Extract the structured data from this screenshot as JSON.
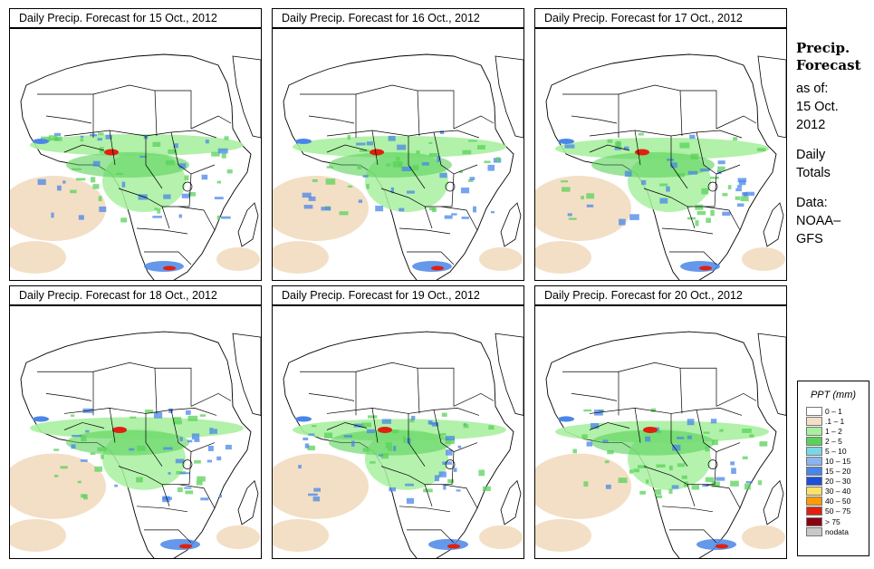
{
  "panel_title_prefix": "Daily Precip. Forecast for",
  "panels": [
    {
      "title": "Daily Precip. Forecast for  15 Oct., 2012",
      "date": "15 Oct., 2012"
    },
    {
      "title": "Daily Precip. Forecast for  16 Oct., 2012",
      "date": "16 Oct., 2012"
    },
    {
      "title": "Daily Precip. Forecast for  17 Oct., 2012",
      "date": "17 Oct., 2012"
    },
    {
      "title": "Daily Precip. Forecast for  18 Oct., 2012",
      "date": "18 Oct., 2012"
    },
    {
      "title": "Daily Precip. Forecast for  19 Oct., 2012",
      "date": "19 Oct., 2012"
    },
    {
      "title": "Daily Precip. Forecast for  20 Oct., 2012",
      "date": "20 Oct., 2012"
    }
  ],
  "sidebar": {
    "title_line1": "Precip.",
    "title_line2": "Forecast",
    "asof_line1": "as of:",
    "asof_line2": "15 Oct.",
    "asof_line3": "2012",
    "totals_line1": "Daily",
    "totals_line2": "Totals",
    "data_line1": "Data:",
    "data_line2": "NOAA–",
    "data_line3": "GFS"
  },
  "legend": {
    "title": "PPT (mm)",
    "items": [
      {
        "label": "0 – 1",
        "color": "#ffffff"
      },
      {
        "label": ".1 – 1",
        "color": "#f3dfc6"
      },
      {
        "label": "1 – 2",
        "color": "#a8f0a0"
      },
      {
        "label": "2 – 5",
        "color": "#5ad25a"
      },
      {
        "label": "5 – 10",
        "color": "#7ad7e6"
      },
      {
        "label": "10 – 15",
        "color": "#8ab4f0"
      },
      {
        "label": "15 – 20",
        "color": "#4a86e8"
      },
      {
        "label": "20 – 30",
        "color": "#1e4fd6"
      },
      {
        "label": "30 – 40",
        "color": "#ffe066"
      },
      {
        "label": "40 – 50",
        "color": "#ff9a00"
      },
      {
        "label": "50 – 75",
        "color": "#e02010"
      },
      {
        "label": "> 75",
        "color": "#8a0010"
      },
      {
        "label": "nodata",
        "color": "#c8c8c8"
      }
    ]
  },
  "colors": {
    "dry": "#f3dfc6",
    "light": "#a8f0a0",
    "moderate": "#5ad25a",
    "heavy": "#4a86e8",
    "intense": "#e02010",
    "border": "#000000"
  }
}
